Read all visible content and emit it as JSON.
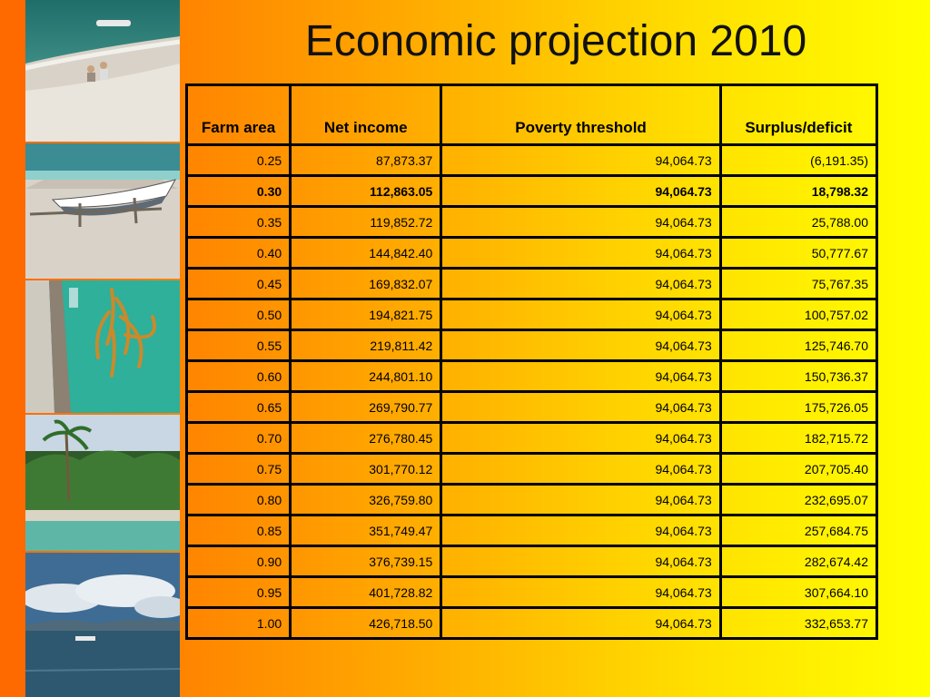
{
  "title": "Economic projection 2010",
  "table": {
    "headers": [
      "Farm area",
      "Net income",
      "Poverty threshold",
      "Surplus/deficit"
    ],
    "rows": [
      {
        "farm_area": "0.25",
        "net_income": "87,873.37",
        "poverty_threshold": "94,064.73",
        "surplus_deficit": "(6,191.35)",
        "bold": false
      },
      {
        "farm_area": "0.30",
        "net_income": "112,863.05",
        "poverty_threshold": "94,064.73",
        "surplus_deficit": "18,798.32",
        "bold": true
      },
      {
        "farm_area": "0.35",
        "net_income": "119,852.72",
        "poverty_threshold": "94,064.73",
        "surplus_deficit": "25,788.00",
        "bold": false
      },
      {
        "farm_area": "0.40",
        "net_income": "144,842.40",
        "poverty_threshold": "94,064.73",
        "surplus_deficit": "50,777.67",
        "bold": false
      },
      {
        "farm_area": "0.45",
        "net_income": "169,832.07",
        "poverty_threshold": "94,064.73",
        "surplus_deficit": "75,767.35",
        "bold": false
      },
      {
        "farm_area": "0.50",
        "net_income": "194,821.75",
        "poverty_threshold": "94,064.73",
        "surplus_deficit": "100,757.02",
        "bold": false
      },
      {
        "farm_area": "0.55",
        "net_income": "219,811.42",
        "poverty_threshold": "94,064.73",
        "surplus_deficit": "125,746.70",
        "bold": false
      },
      {
        "farm_area": "0.60",
        "net_income": "244,801.10",
        "poverty_threshold": "94,064.73",
        "surplus_deficit": "150,736.37",
        "bold": false
      },
      {
        "farm_area": "0.65",
        "net_income": "269,790.77",
        "poverty_threshold": "94,064.73",
        "surplus_deficit": "175,726.05",
        "bold": false
      },
      {
        "farm_area": "0.70",
        "net_income": "276,780.45",
        "poverty_threshold": "94,064.73",
        "surplus_deficit": "182,715.72",
        "bold": false
      },
      {
        "farm_area": "0.75",
        "net_income": "301,770.12",
        "poverty_threshold": "94,064.73",
        "surplus_deficit": "207,705.40",
        "bold": false
      },
      {
        "farm_area": "0.80",
        "net_income": "326,759.80",
        "poverty_threshold": "94,064.73",
        "surplus_deficit": "232,695.07",
        "bold": false
      },
      {
        "farm_area": "0.85",
        "net_income": "351,749.47",
        "poverty_threshold": "94,064.73",
        "surplus_deficit": "257,684.75",
        "bold": false
      },
      {
        "farm_area": "0.90",
        "net_income": "376,739.15",
        "poverty_threshold": "94,064.73",
        "surplus_deficit": "282,674.42",
        "bold": false
      },
      {
        "farm_area": "0.95",
        "net_income": "401,728.82",
        "poverty_threshold": "94,064.73",
        "surplus_deficit": "307,664.10",
        "bold": false
      },
      {
        "farm_area": "1.00",
        "net_income": "426,718.50",
        "poverty_threshold": "94,064.73",
        "surplus_deficit": "332,653.77",
        "bold": false
      }
    ]
  },
  "photos": [
    {
      "name": "beach-boat-photo"
    },
    {
      "name": "outrigger-boat-photo"
    },
    {
      "name": "seaweed-underwater-photo"
    },
    {
      "name": "palm-beach-photo"
    },
    {
      "name": "sea-clouds-photo"
    }
  ],
  "colors": {
    "gradient_start": "#ff6a00",
    "gradient_end": "#ffff00",
    "border": "#000000"
  }
}
